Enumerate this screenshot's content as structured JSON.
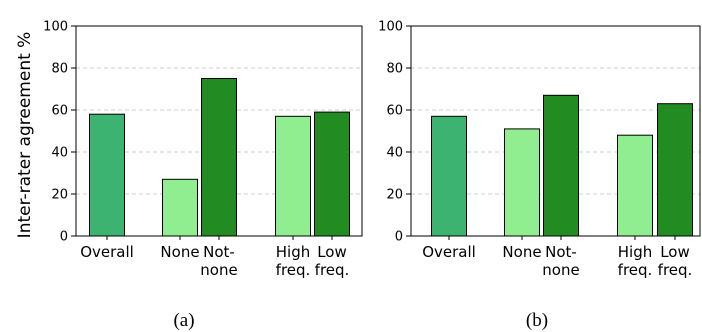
{
  "chart_data": [
    {
      "type": "bar",
      "panel_caption": "(a)",
      "ylabel": "Inter-rater agreement %",
      "ylim": [
        0,
        100
      ],
      "yticks": [
        0,
        20,
        40,
        60,
        80,
        100
      ],
      "grid": "horizontal dashed",
      "categories": [
        [
          "Overall"
        ],
        [
          "None"
        ],
        [
          "Not-",
          "none"
        ],
        [
          "High",
          "freq."
        ],
        [
          "Low",
          "freq."
        ]
      ],
      "values": [
        58,
        27,
        75,
        57,
        59
      ],
      "colors": [
        "#3cb371",
        "#90ee90",
        "#228b22",
        "#90ee90",
        "#228b22"
      ]
    },
    {
      "type": "bar",
      "panel_caption": "(b)",
      "ylabel": "",
      "ylim": [
        0,
        100
      ],
      "yticks": [
        0,
        20,
        40,
        60,
        80,
        100
      ],
      "grid": "horizontal dashed",
      "categories": [
        [
          "Overall"
        ],
        [
          "None"
        ],
        [
          "Not-",
          "none"
        ],
        [
          "High",
          "freq."
        ],
        [
          "Low",
          "freq."
        ]
      ],
      "values": [
        57,
        51,
        67,
        48,
        63
      ],
      "colors": [
        "#3cb371",
        "#90ee90",
        "#228b22",
        "#90ee90",
        "#228b22"
      ]
    }
  ]
}
